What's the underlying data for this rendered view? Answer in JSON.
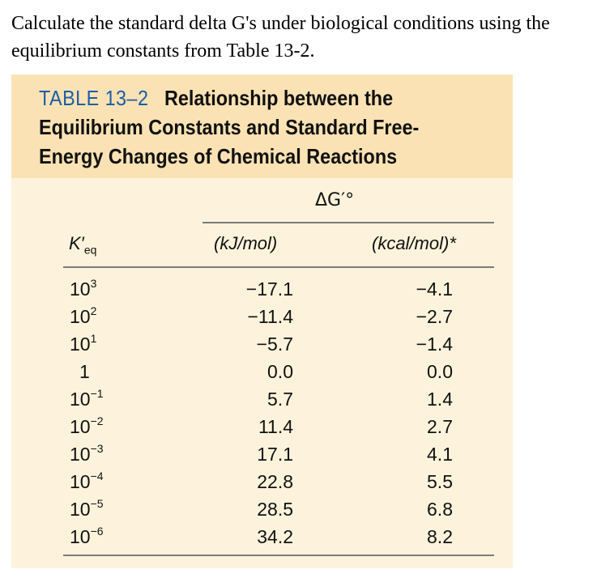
{
  "question": "Calculate the standard delta G's under biological conditions using the equilibrium constants from Table 13-2.",
  "table": {
    "number": "TABLE 13–2",
    "caption": "Relationship between the Equilibrium Constants and Standard Free-Energy Changes of Chemical Reactions",
    "group_header": "ΔG′°",
    "columns": {
      "keq": "K′",
      "keq_sub": "eq",
      "kj": "(kJ/mol)",
      "kcal": "(kcal/mol)*"
    },
    "rows": [
      {
        "base": "10",
        "exp": "3",
        "kj": "−17.1",
        "kcal": "−4.1"
      },
      {
        "base": "10",
        "exp": "2",
        "kj": "−11.4",
        "kcal": "−2.7"
      },
      {
        "base": "10",
        "exp": "1",
        "kj": "−5.7",
        "kcal": "−1.4"
      },
      {
        "base": "1",
        "exp": "",
        "kj": "0.0",
        "kcal": "0.0"
      },
      {
        "base": "10",
        "exp": "−1",
        "kj": "5.7",
        "kcal": "1.4"
      },
      {
        "base": "10",
        "exp": "−2",
        "kj": "11.4",
        "kcal": "2.7"
      },
      {
        "base": "10",
        "exp": "−3",
        "kj": "17.1",
        "kcal": "4.1"
      },
      {
        "base": "10",
        "exp": "−4",
        "kj": "22.8",
        "kcal": "5.5"
      },
      {
        "base": "10",
        "exp": "−5",
        "kj": "28.5",
        "kcal": "6.8"
      },
      {
        "base": "10",
        "exp": "−6",
        "kj": "34.2",
        "kcal": "8.2"
      }
    ]
  },
  "colors": {
    "header_bg": "#fbe2b4",
    "body_bg": "#fdf3dc",
    "table_number": "#1c5ea5"
  }
}
